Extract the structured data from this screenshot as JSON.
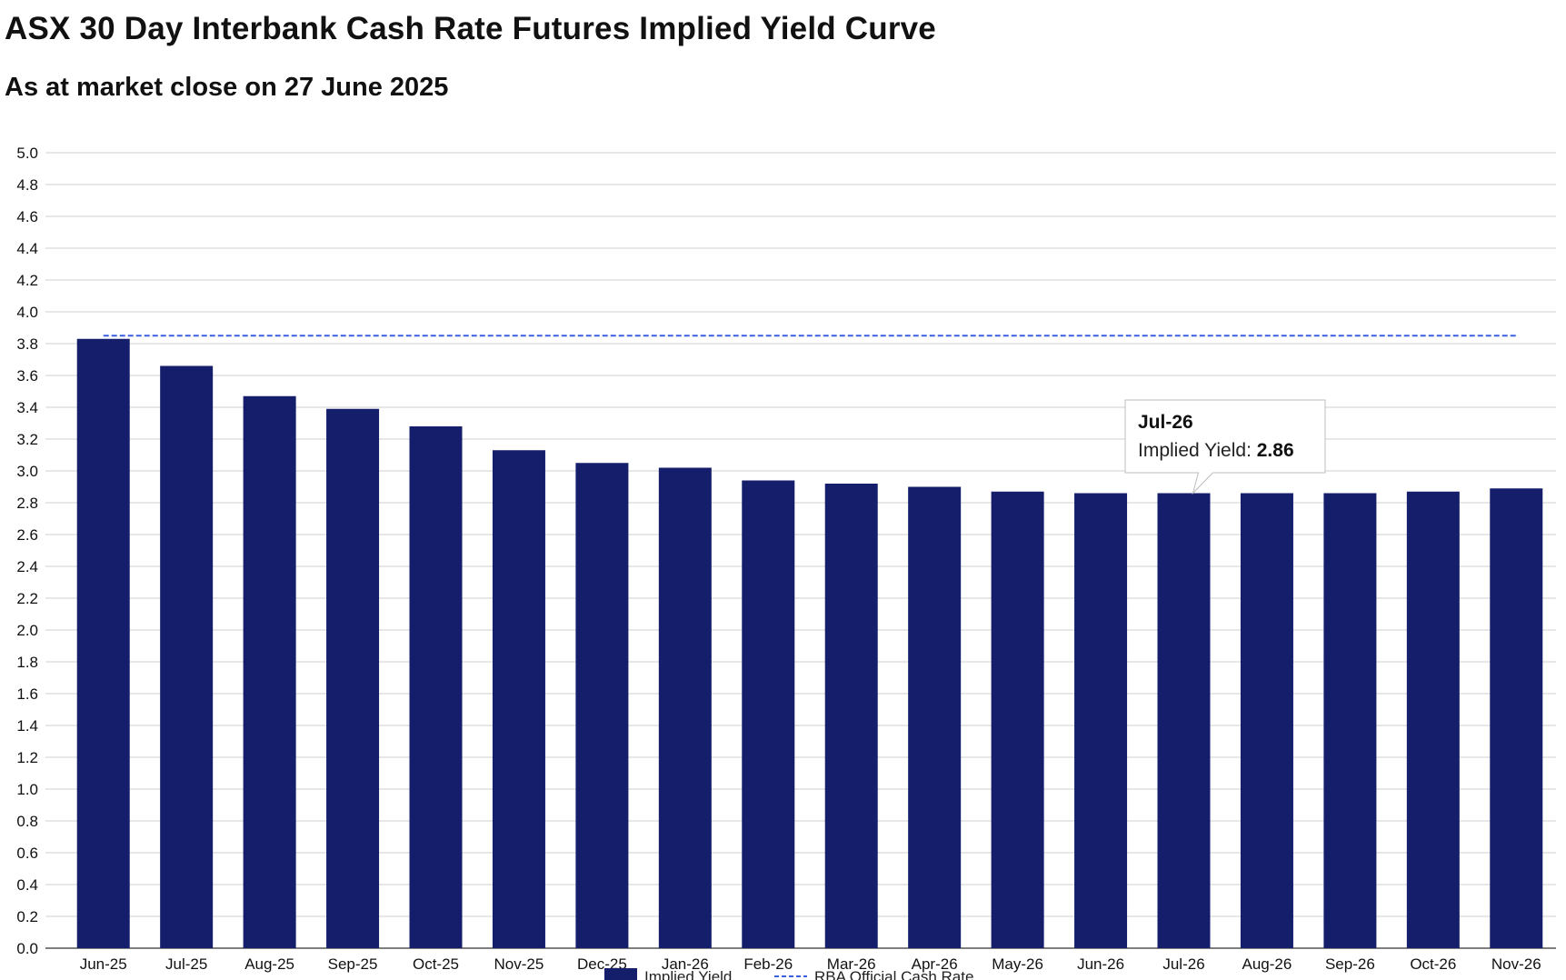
{
  "header": {
    "title": "ASX 30 Day Interbank Cash Rate Futures Implied Yield Curve",
    "subtitle": "As at market close on 27 June 2025"
  },
  "chart_data": {
    "type": "bar",
    "categories": [
      "Jun-25",
      "Jul-25",
      "Aug-25",
      "Sep-25",
      "Oct-25",
      "Nov-25",
      "Dec-25",
      "Jan-26",
      "Feb-26",
      "Mar-26",
      "Apr-26",
      "May-26",
      "Jun-26",
      "Jul-26",
      "Aug-26",
      "Sep-26",
      "Oct-26",
      "Nov-26"
    ],
    "series": [
      {
        "name": "Implied Yield",
        "type": "bar",
        "color": "#141e6b",
        "values": [
          3.83,
          3.66,
          3.47,
          3.39,
          3.28,
          3.13,
          3.05,
          3.02,
          2.94,
          2.92,
          2.9,
          2.87,
          2.86,
          2.86,
          2.86,
          2.86,
          2.87,
          2.89
        ]
      },
      {
        "name": "RBA Official Cash Rate",
        "type": "line",
        "style": "dashed",
        "color": "#3a5fe0",
        "value": 3.85
      }
    ],
    "yticks": [
      "0.0",
      "0.2",
      "0.4",
      "0.6",
      "0.8",
      "1.0",
      "1.2",
      "1.4",
      "1.6",
      "1.8",
      "2.0",
      "2.2",
      "2.4",
      "2.6",
      "2.8",
      "3.0",
      "3.2",
      "3.4",
      "3.6",
      "3.8",
      "4.0",
      "4.2",
      "4.4",
      "4.6",
      "4.8",
      "5.0"
    ],
    "ylim": [
      0,
      5
    ],
    "grid": true,
    "legend_position": "bottom",
    "tooltip": {
      "category": "Jul-26",
      "label": "Implied Yield: ",
      "value": "2.86"
    }
  }
}
